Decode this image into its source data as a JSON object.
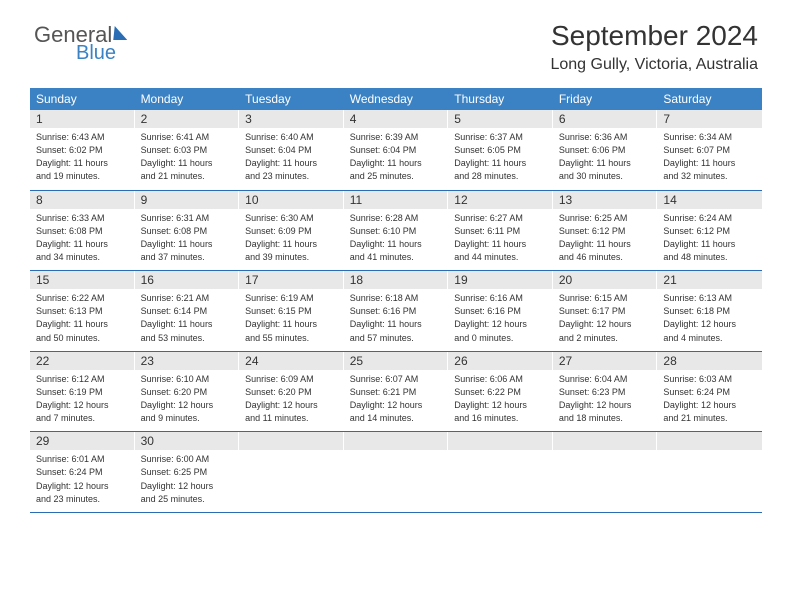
{
  "logo": {
    "part1": "General",
    "part2": "Blue"
  },
  "title": "September 2024",
  "location": "Long Gully, Victoria, Australia",
  "colors": {
    "header_bg": "#3b82c4",
    "header_text": "#ffffff",
    "daynum_bg": "#e8e8e8",
    "border": "#2a6db5",
    "text": "#333333"
  },
  "day_headers": [
    "Sunday",
    "Monday",
    "Tuesday",
    "Wednesday",
    "Thursday",
    "Friday",
    "Saturday"
  ],
  "weeks": [
    [
      {
        "num": "1",
        "sunrise": "Sunrise: 6:43 AM",
        "sunset": "Sunset: 6:02 PM",
        "daylight1": "Daylight: 11 hours",
        "daylight2": "and 19 minutes."
      },
      {
        "num": "2",
        "sunrise": "Sunrise: 6:41 AM",
        "sunset": "Sunset: 6:03 PM",
        "daylight1": "Daylight: 11 hours",
        "daylight2": "and 21 minutes."
      },
      {
        "num": "3",
        "sunrise": "Sunrise: 6:40 AM",
        "sunset": "Sunset: 6:04 PM",
        "daylight1": "Daylight: 11 hours",
        "daylight2": "and 23 minutes."
      },
      {
        "num": "4",
        "sunrise": "Sunrise: 6:39 AM",
        "sunset": "Sunset: 6:04 PM",
        "daylight1": "Daylight: 11 hours",
        "daylight2": "and 25 minutes."
      },
      {
        "num": "5",
        "sunrise": "Sunrise: 6:37 AM",
        "sunset": "Sunset: 6:05 PM",
        "daylight1": "Daylight: 11 hours",
        "daylight2": "and 28 minutes."
      },
      {
        "num": "6",
        "sunrise": "Sunrise: 6:36 AM",
        "sunset": "Sunset: 6:06 PM",
        "daylight1": "Daylight: 11 hours",
        "daylight2": "and 30 minutes."
      },
      {
        "num": "7",
        "sunrise": "Sunrise: 6:34 AM",
        "sunset": "Sunset: 6:07 PM",
        "daylight1": "Daylight: 11 hours",
        "daylight2": "and 32 minutes."
      }
    ],
    [
      {
        "num": "8",
        "sunrise": "Sunrise: 6:33 AM",
        "sunset": "Sunset: 6:08 PM",
        "daylight1": "Daylight: 11 hours",
        "daylight2": "and 34 minutes."
      },
      {
        "num": "9",
        "sunrise": "Sunrise: 6:31 AM",
        "sunset": "Sunset: 6:08 PM",
        "daylight1": "Daylight: 11 hours",
        "daylight2": "and 37 minutes."
      },
      {
        "num": "10",
        "sunrise": "Sunrise: 6:30 AM",
        "sunset": "Sunset: 6:09 PM",
        "daylight1": "Daylight: 11 hours",
        "daylight2": "and 39 minutes."
      },
      {
        "num": "11",
        "sunrise": "Sunrise: 6:28 AM",
        "sunset": "Sunset: 6:10 PM",
        "daylight1": "Daylight: 11 hours",
        "daylight2": "and 41 minutes."
      },
      {
        "num": "12",
        "sunrise": "Sunrise: 6:27 AM",
        "sunset": "Sunset: 6:11 PM",
        "daylight1": "Daylight: 11 hours",
        "daylight2": "and 44 minutes."
      },
      {
        "num": "13",
        "sunrise": "Sunrise: 6:25 AM",
        "sunset": "Sunset: 6:12 PM",
        "daylight1": "Daylight: 11 hours",
        "daylight2": "and 46 minutes."
      },
      {
        "num": "14",
        "sunrise": "Sunrise: 6:24 AM",
        "sunset": "Sunset: 6:12 PM",
        "daylight1": "Daylight: 11 hours",
        "daylight2": "and 48 minutes."
      }
    ],
    [
      {
        "num": "15",
        "sunrise": "Sunrise: 6:22 AM",
        "sunset": "Sunset: 6:13 PM",
        "daylight1": "Daylight: 11 hours",
        "daylight2": "and 50 minutes."
      },
      {
        "num": "16",
        "sunrise": "Sunrise: 6:21 AM",
        "sunset": "Sunset: 6:14 PM",
        "daylight1": "Daylight: 11 hours",
        "daylight2": "and 53 minutes."
      },
      {
        "num": "17",
        "sunrise": "Sunrise: 6:19 AM",
        "sunset": "Sunset: 6:15 PM",
        "daylight1": "Daylight: 11 hours",
        "daylight2": "and 55 minutes."
      },
      {
        "num": "18",
        "sunrise": "Sunrise: 6:18 AM",
        "sunset": "Sunset: 6:16 PM",
        "daylight1": "Daylight: 11 hours",
        "daylight2": "and 57 minutes."
      },
      {
        "num": "19",
        "sunrise": "Sunrise: 6:16 AM",
        "sunset": "Sunset: 6:16 PM",
        "daylight1": "Daylight: 12 hours",
        "daylight2": "and 0 minutes."
      },
      {
        "num": "20",
        "sunrise": "Sunrise: 6:15 AM",
        "sunset": "Sunset: 6:17 PM",
        "daylight1": "Daylight: 12 hours",
        "daylight2": "and 2 minutes."
      },
      {
        "num": "21",
        "sunrise": "Sunrise: 6:13 AM",
        "sunset": "Sunset: 6:18 PM",
        "daylight1": "Daylight: 12 hours",
        "daylight2": "and 4 minutes."
      }
    ],
    [
      {
        "num": "22",
        "sunrise": "Sunrise: 6:12 AM",
        "sunset": "Sunset: 6:19 PM",
        "daylight1": "Daylight: 12 hours",
        "daylight2": "and 7 minutes."
      },
      {
        "num": "23",
        "sunrise": "Sunrise: 6:10 AM",
        "sunset": "Sunset: 6:20 PM",
        "daylight1": "Daylight: 12 hours",
        "daylight2": "and 9 minutes."
      },
      {
        "num": "24",
        "sunrise": "Sunrise: 6:09 AM",
        "sunset": "Sunset: 6:20 PM",
        "daylight1": "Daylight: 12 hours",
        "daylight2": "and 11 minutes."
      },
      {
        "num": "25",
        "sunrise": "Sunrise: 6:07 AM",
        "sunset": "Sunset: 6:21 PM",
        "daylight1": "Daylight: 12 hours",
        "daylight2": "and 14 minutes."
      },
      {
        "num": "26",
        "sunrise": "Sunrise: 6:06 AM",
        "sunset": "Sunset: 6:22 PM",
        "daylight1": "Daylight: 12 hours",
        "daylight2": "and 16 minutes."
      },
      {
        "num": "27",
        "sunrise": "Sunrise: 6:04 AM",
        "sunset": "Sunset: 6:23 PM",
        "daylight1": "Daylight: 12 hours",
        "daylight2": "and 18 minutes."
      },
      {
        "num": "28",
        "sunrise": "Sunrise: 6:03 AM",
        "sunset": "Sunset: 6:24 PM",
        "daylight1": "Daylight: 12 hours",
        "daylight2": "and 21 minutes."
      }
    ],
    [
      {
        "num": "29",
        "sunrise": "Sunrise: 6:01 AM",
        "sunset": "Sunset: 6:24 PM",
        "daylight1": "Daylight: 12 hours",
        "daylight2": "and 23 minutes."
      },
      {
        "num": "30",
        "sunrise": "Sunrise: 6:00 AM",
        "sunset": "Sunset: 6:25 PM",
        "daylight1": "Daylight: 12 hours",
        "daylight2": "and 25 minutes."
      },
      {
        "empty": true
      },
      {
        "empty": true
      },
      {
        "empty": true
      },
      {
        "empty": true
      },
      {
        "empty": true
      }
    ]
  ]
}
